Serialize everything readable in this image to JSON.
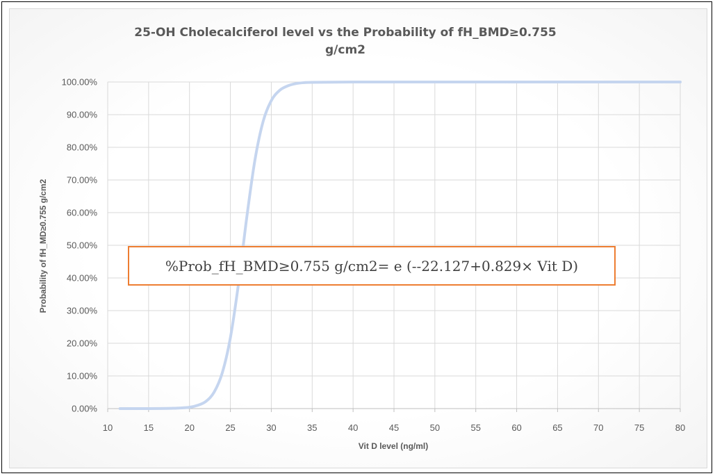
{
  "colors": {
    "grid": "#d9d9d9",
    "axis": "#bfbfbf",
    "curve": "#c5d5ef",
    "annotation_border": "#ed7d31"
  },
  "annotation": {
    "formula": "%Prob_fH_BMD≥0.755 g/cm2= e (--22.127+0.829× Vit D)"
  },
  "chart_data": {
    "type": "line",
    "title_lines": [
      "25-OH Cholecalciferol  level vs the Probability  of fH_BMD≥0.755",
      "g/cm2"
    ],
    "xlabel": "Vit D level (ng/ml)",
    "ylabel": "Probability of fH_MD≥0.755 g/cm2",
    "xlim": [
      10,
      80
    ],
    "ylim": [
      0,
      100
    ],
    "x_ticks": [
      10,
      15,
      20,
      25,
      30,
      35,
      40,
      45,
      50,
      55,
      60,
      65,
      70,
      75,
      80
    ],
    "y_ticks": [
      "0.00%",
      "10.00%",
      "20.00%",
      "30.00%",
      "40.00%",
      "50.00%",
      "60.00%",
      "70.00%",
      "80.00%",
      "90.00%",
      "100.00%"
    ],
    "grid": true,
    "legend": "none",
    "series": [
      {
        "x": [
          11.5,
          15,
          18,
          20,
          21,
          22,
          23,
          24,
          25,
          26,
          27,
          28,
          29,
          30,
          31,
          32,
          33,
          34,
          35,
          40,
          50,
          60,
          70,
          80
        ],
        "y": [
          0.0,
          0.0,
          0.1,
          0.4,
          1.0,
          2.2,
          5.0,
          10.9,
          21.7,
          38.4,
          58.5,
          76.1,
          87.9,
          94.3,
          97.4,
          98.8,
          99.5,
          99.8,
          99.9,
          100,
          100,
          100,
          100,
          100
        ]
      }
    ]
  }
}
